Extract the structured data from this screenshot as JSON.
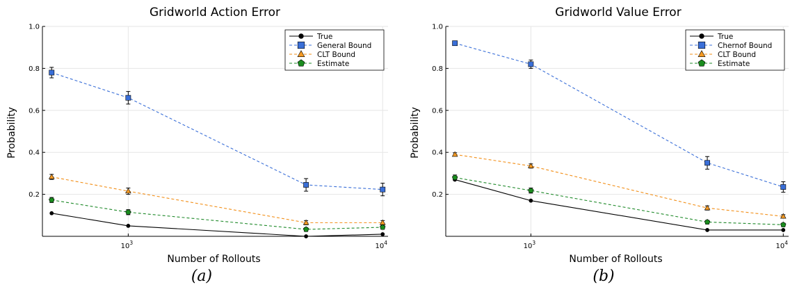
{
  "colors": {
    "true": "#000000",
    "general": "#3a6fd8",
    "clt": "#f28e16",
    "estimate": "#1f8a2a",
    "marker_true": "#000000",
    "marker_general": "#3a6fd8",
    "marker_clt": "#f59a23",
    "marker_estimate": "#1a8c1e"
  },
  "chart_data": [
    {
      "type": "line",
      "title": "Gridworld Action Error",
      "xlabel": "Number of Rollouts",
      "ylabel": "Probability",
      "caption": "(a)",
      "x_scale": "log",
      "xlim": [
        460,
        10500
      ],
      "ylim": [
        0,
        1.0
      ],
      "x_ticks": [
        {
          "value": 1000,
          "base": "10",
          "exp": "3"
        },
        {
          "value": 10000,
          "base": "10",
          "exp": "4"
        }
      ],
      "y_ticks": [
        0.2,
        0.4,
        0.6,
        0.8,
        1.0
      ],
      "y_tick_labels": [
        "0.2",
        "0.4",
        "0.6",
        "0.8",
        "1.0"
      ],
      "grid": true,
      "legend_position": "top-right",
      "x": [
        500,
        1000,
        5000,
        10000
      ],
      "series": [
        {
          "name": "True",
          "key": "true",
          "marker": "circle",
          "dash": false,
          "values": [
            0.11,
            0.05,
            0.0,
            0.01
          ],
          "err": [
            0,
            0,
            0,
            0
          ]
        },
        {
          "name": "General Bound",
          "key": "general",
          "marker": "square",
          "dash": true,
          "values": [
            0.78,
            0.66,
            0.245,
            0.223
          ],
          "err": [
            0.025,
            0.03,
            0.03,
            0.03
          ]
        },
        {
          "name": "CLT Bound",
          "key": "clt",
          "marker": "triangle",
          "dash": true,
          "values": [
            0.283,
            0.215,
            0.065,
            0.065
          ],
          "err": [
            0.012,
            0.015,
            0.01,
            0.01
          ]
        },
        {
          "name": "Estimate",
          "key": "estimate",
          "marker": "pentagon",
          "dash": true,
          "values": [
            0.173,
            0.115,
            0.033,
            0.043
          ],
          "err": [
            0.012,
            0.012,
            0.008,
            0.008
          ]
        }
      ]
    },
    {
      "type": "line",
      "title": "Gridworld Value Error",
      "xlabel": "Number of Rollouts",
      "ylabel": "Probability",
      "caption": "(b)",
      "x_scale": "log",
      "xlim": [
        460,
        10500
      ],
      "ylim": [
        0,
        1.0
      ],
      "x_ticks": [
        {
          "value": 1000,
          "base": "10",
          "exp": "3"
        },
        {
          "value": 10000,
          "base": "10",
          "exp": "4"
        }
      ],
      "y_ticks": [
        0.2,
        0.4,
        0.6,
        0.8,
        1.0
      ],
      "y_tick_labels": [
        "0.2",
        "0.4",
        "0.6",
        "0.8",
        "1.0"
      ],
      "grid": true,
      "legend_position": "top-right",
      "x": [
        500,
        1000,
        5000,
        10000
      ],
      "series": [
        {
          "name": "True",
          "key": "true",
          "marker": "circle",
          "dash": false,
          "values": [
            0.27,
            0.17,
            0.03,
            0.03
          ],
          "err": [
            0,
            0,
            0,
            0
          ]
        },
        {
          "name": "Chernof Bound",
          "key": "general",
          "marker": "square",
          "dash": true,
          "values": [
            0.92,
            0.82,
            0.35,
            0.235
          ],
          "err": [
            0.01,
            0.02,
            0.03,
            0.025
          ]
        },
        {
          "name": "CLT Bound",
          "key": "clt",
          "marker": "triangle",
          "dash": true,
          "values": [
            0.39,
            0.335,
            0.135,
            0.095
          ],
          "err": [
            0.008,
            0.01,
            0.01,
            0.008
          ]
        },
        {
          "name": "Estimate",
          "key": "estimate",
          "marker": "pentagon",
          "dash": true,
          "values": [
            0.28,
            0.218,
            0.068,
            0.055
          ],
          "err": [
            0.012,
            0.012,
            0.008,
            0.008
          ]
        }
      ]
    }
  ]
}
